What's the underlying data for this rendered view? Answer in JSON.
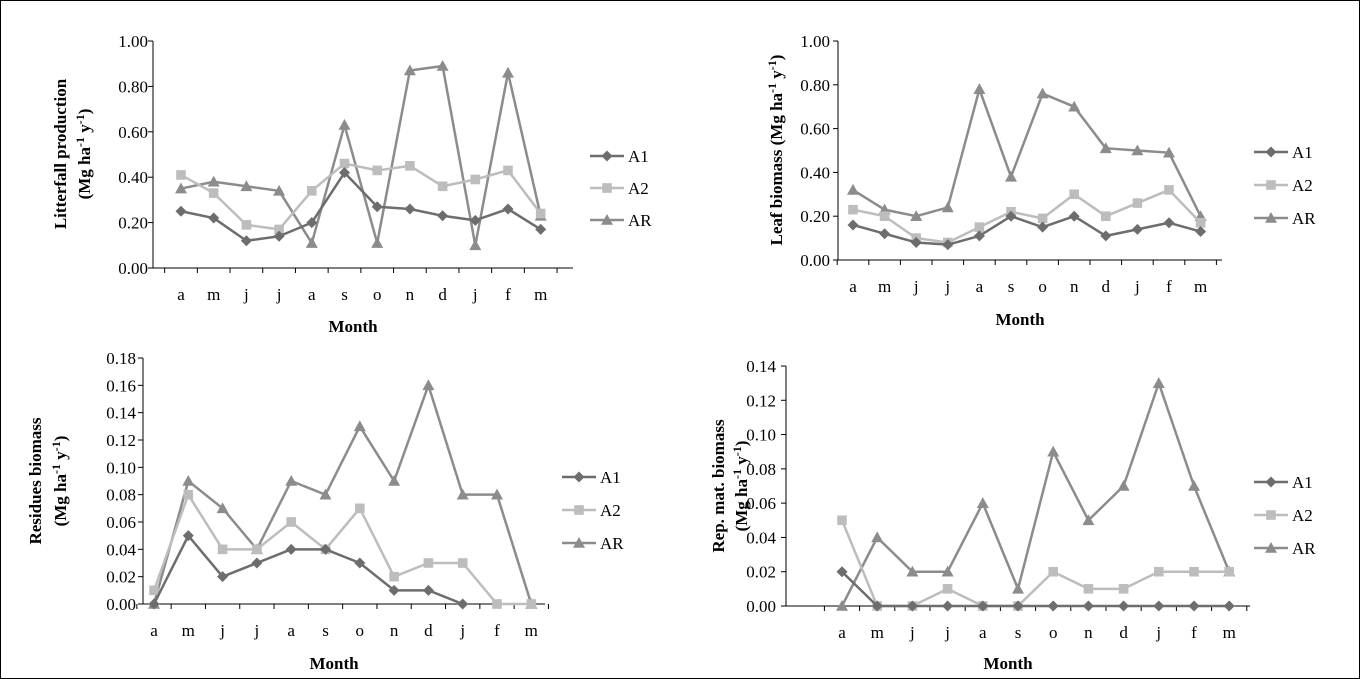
{
  "colors": {
    "A1": "#6d6d6d",
    "A2": "#bdbdbd",
    "AR": "#8c8c8c"
  },
  "chart_data": [
    {
      "type": "line",
      "categories": [
        "a",
        "m",
        "j",
        "j",
        "a",
        "s",
        "o",
        "n",
        "d",
        "j",
        "f",
        "m"
      ],
      "xlabel": "Month",
      "ylabel": "Litterfall production",
      "ylabel2": "(Mg ha-1 y-1)",
      "ylim": [
        0,
        1
      ],
      "yticks": [
        "0.00",
        "0.20",
        "0.40",
        "0.60",
        "0.80",
        "1.00"
      ],
      "legend": "right",
      "series": [
        {
          "name": "A1",
          "marker": "diamond",
          "values": [
            0.25,
            0.22,
            0.12,
            0.14,
            0.2,
            0.42,
            0.27,
            0.26,
            0.23,
            0.21,
            0.26,
            0.17
          ]
        },
        {
          "name": "A2",
          "marker": "square",
          "values": [
            0.41,
            0.33,
            0.19,
            0.17,
            0.34,
            0.46,
            0.43,
            0.45,
            0.36,
            0.39,
            0.43,
            0.24
          ]
        },
        {
          "name": "AR",
          "marker": "triangle",
          "values": [
            0.35,
            0.38,
            0.36,
            0.34,
            0.11,
            0.63,
            0.11,
            0.87,
            0.89,
            0.1,
            0.86,
            0.23
          ]
        }
      ]
    },
    {
      "type": "line",
      "categories": [
        "a",
        "m",
        "j",
        "j",
        "a",
        "s",
        "o",
        "n",
        "d",
        "j",
        "f",
        "m"
      ],
      "xlabel": "Month",
      "ylabel": "Leaf biomass  (Mg ha-1 y-1)",
      "ylim": [
        0,
        1
      ],
      "yticks": [
        "0.00",
        "0.20",
        "0.40",
        "0.60",
        "0.80",
        "1.00"
      ],
      "legend": "right",
      "series": [
        {
          "name": "A1",
          "marker": "diamond",
          "values": [
            0.16,
            0.12,
            0.08,
            0.07,
            0.11,
            0.2,
            0.15,
            0.2,
            0.11,
            0.14,
            0.17,
            0.13
          ]
        },
        {
          "name": "A2",
          "marker": "square",
          "values": [
            0.23,
            0.2,
            0.1,
            0.08,
            0.15,
            0.22,
            0.19,
            0.3,
            0.2,
            0.26,
            0.32,
            0.17
          ]
        },
        {
          "name": "AR",
          "marker": "triangle",
          "values": [
            0.32,
            0.23,
            0.2,
            0.24,
            0.78,
            0.38,
            0.76,
            0.7,
            0.51,
            0.5,
            0.49,
            0.2
          ]
        }
      ]
    },
    {
      "type": "line",
      "categories": [
        "a",
        "m",
        "j",
        "j",
        "a",
        "s",
        "o",
        "n",
        "d",
        "j",
        "f",
        "m"
      ],
      "xlabel": "Month",
      "ylabel": "Residues biomass",
      "ylabel2": "(Mg ha-1 y-1)",
      "ylim": [
        0,
        0.18
      ],
      "yticks": [
        "0.00",
        "0.02",
        "0.04",
        "0.06",
        "0.08",
        "0.10",
        "0.12",
        "0.14",
        "0.16",
        "0.18"
      ],
      "legend": "right",
      "series": [
        {
          "name": "A1",
          "marker": "diamond",
          "values": [
            0.0,
            0.05,
            0.02,
            0.03,
            0.04,
            0.04,
            0.03,
            0.01,
            0.01,
            0.0,
            null,
            null
          ]
        },
        {
          "name": "A2",
          "marker": "square",
          "values": [
            0.01,
            0.08,
            0.04,
            0.04,
            0.06,
            0.04,
            0.07,
            0.02,
            0.03,
            0.03,
            0.0,
            0.0
          ]
        },
        {
          "name": "AR",
          "marker": "triangle",
          "values": [
            0.0,
            0.09,
            0.07,
            0.04,
            0.09,
            0.08,
            0.13,
            0.09,
            0.16,
            0.08,
            0.08,
            0.0
          ]
        }
      ]
    },
    {
      "type": "line",
      "categories": [
        "a",
        "m",
        "j",
        "j",
        "a",
        "s",
        "o",
        "n",
        "d",
        "j",
        "f",
        "m"
      ],
      "xlabel": "Month",
      "ylabel": "Rep. mat. biomass",
      "ylabel2": "(Mg ha-1 y-1)",
      "ylim": [
        0,
        0.14
      ],
      "yticks": [
        "0.00",
        "0.02",
        "0.04",
        "0.06",
        "0.08",
        "0.10",
        "0.12",
        "0.14"
      ],
      "legend": "right",
      "series": [
        {
          "name": "A1",
          "marker": "diamond",
          "values": [
            0.02,
            0.0,
            0.0,
            0.0,
            0.0,
            0.0,
            0.0,
            0.0,
            0.0,
            0.0,
            0.0,
            0.0
          ]
        },
        {
          "name": "A2",
          "marker": "square",
          "values": [
            0.05,
            0.0,
            0.0,
            0.01,
            0.0,
            0.0,
            0.02,
            0.01,
            0.01,
            0.02,
            0.02,
            0.02
          ]
        },
        {
          "name": "AR",
          "marker": "triangle",
          "values": [
            0.0,
            0.04,
            0.02,
            0.02,
            0.06,
            0.01,
            0.09,
            0.05,
            0.07,
            0.13,
            0.07,
            0.02
          ]
        }
      ]
    }
  ]
}
